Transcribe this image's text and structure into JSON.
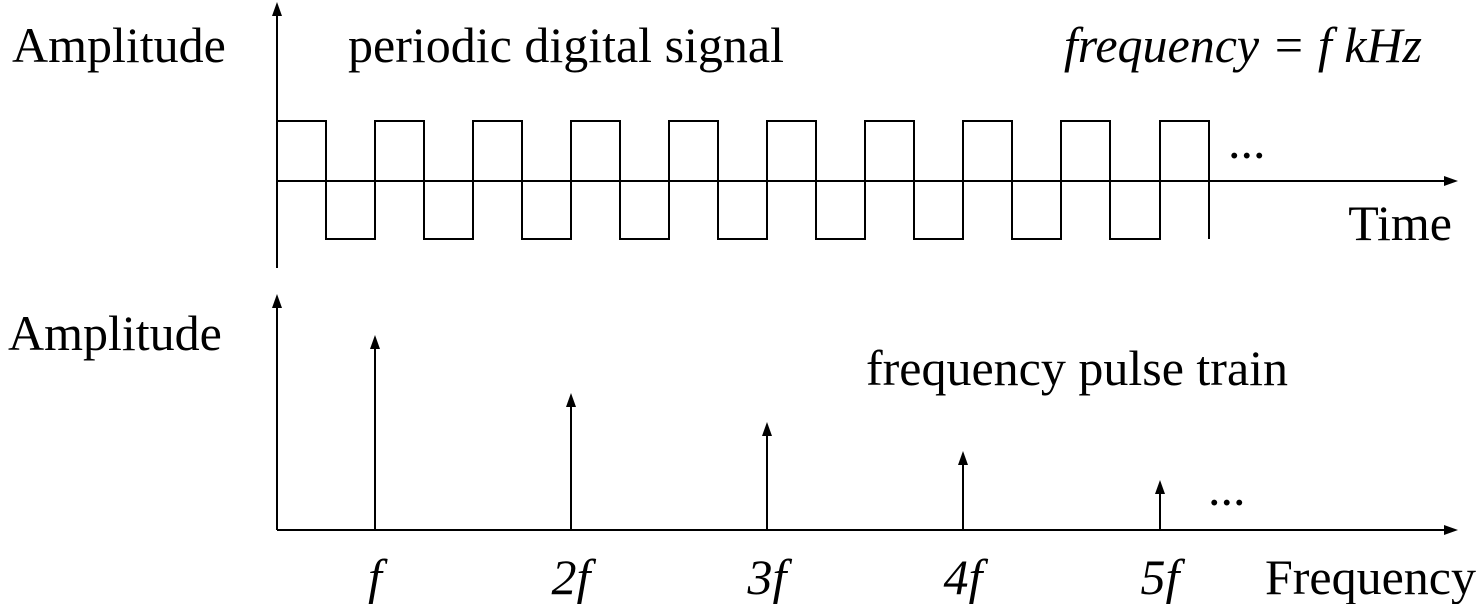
{
  "time_panel": {
    "y_label": "Amplitude",
    "title": "periodic digital signal",
    "formula": "frequency = f kHz",
    "ellipsis": "...",
    "x_label": "Time"
  },
  "frequency_panel": {
    "y_label": "Amplitude",
    "title": "frequency pulse train",
    "ellipsis": "...",
    "x_label": "Frequency",
    "harmonics": [
      "f",
      "2f",
      "3f",
      "4f",
      "5f"
    ]
  }
}
